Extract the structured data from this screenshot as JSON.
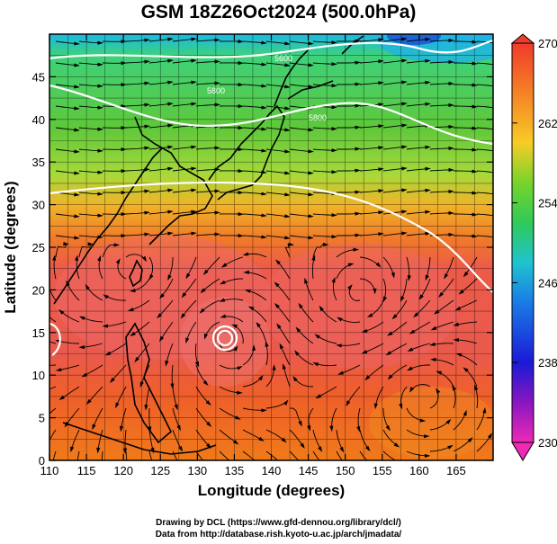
{
  "title": "GSM 18Z26Oct2024 (500.0hPa)",
  "x_axis": {
    "label": "Longitude (degrees)",
    "range": [
      110,
      170
    ],
    "ticks": [
      "110",
      "115",
      "120",
      "125",
      "130",
      "135",
      "140",
      "145",
      "150",
      "155",
      "160",
      "165"
    ]
  },
  "y_axis": {
    "label": "Latitude  (degrees)",
    "range": [
      0,
      50
    ],
    "ticks": [
      "0",
      "5",
      "10",
      "15",
      "20",
      "25",
      "30",
      "35",
      "40",
      "45"
    ]
  },
  "colorbar": {
    "range": [
      230,
      270
    ],
    "labels": [
      "270",
      "262",
      "254",
      "246",
      "238",
      "230"
    ]
  },
  "credits": {
    "line1": "Drawing by DCL (https://www.gfd-dennou.org/library/dcl/)",
    "line2": "Data from http://database.rish.kyoto-u.ac.jp/arch/jmadata/"
  },
  "contour_labels": [
    "5600",
    "5800",
    "5800"
  ],
  "colors": {
    "warm": "#e83a2a",
    "mid": "#f5a623",
    "cool": "#3ec43a",
    "cold": "#22c3e6"
  }
}
